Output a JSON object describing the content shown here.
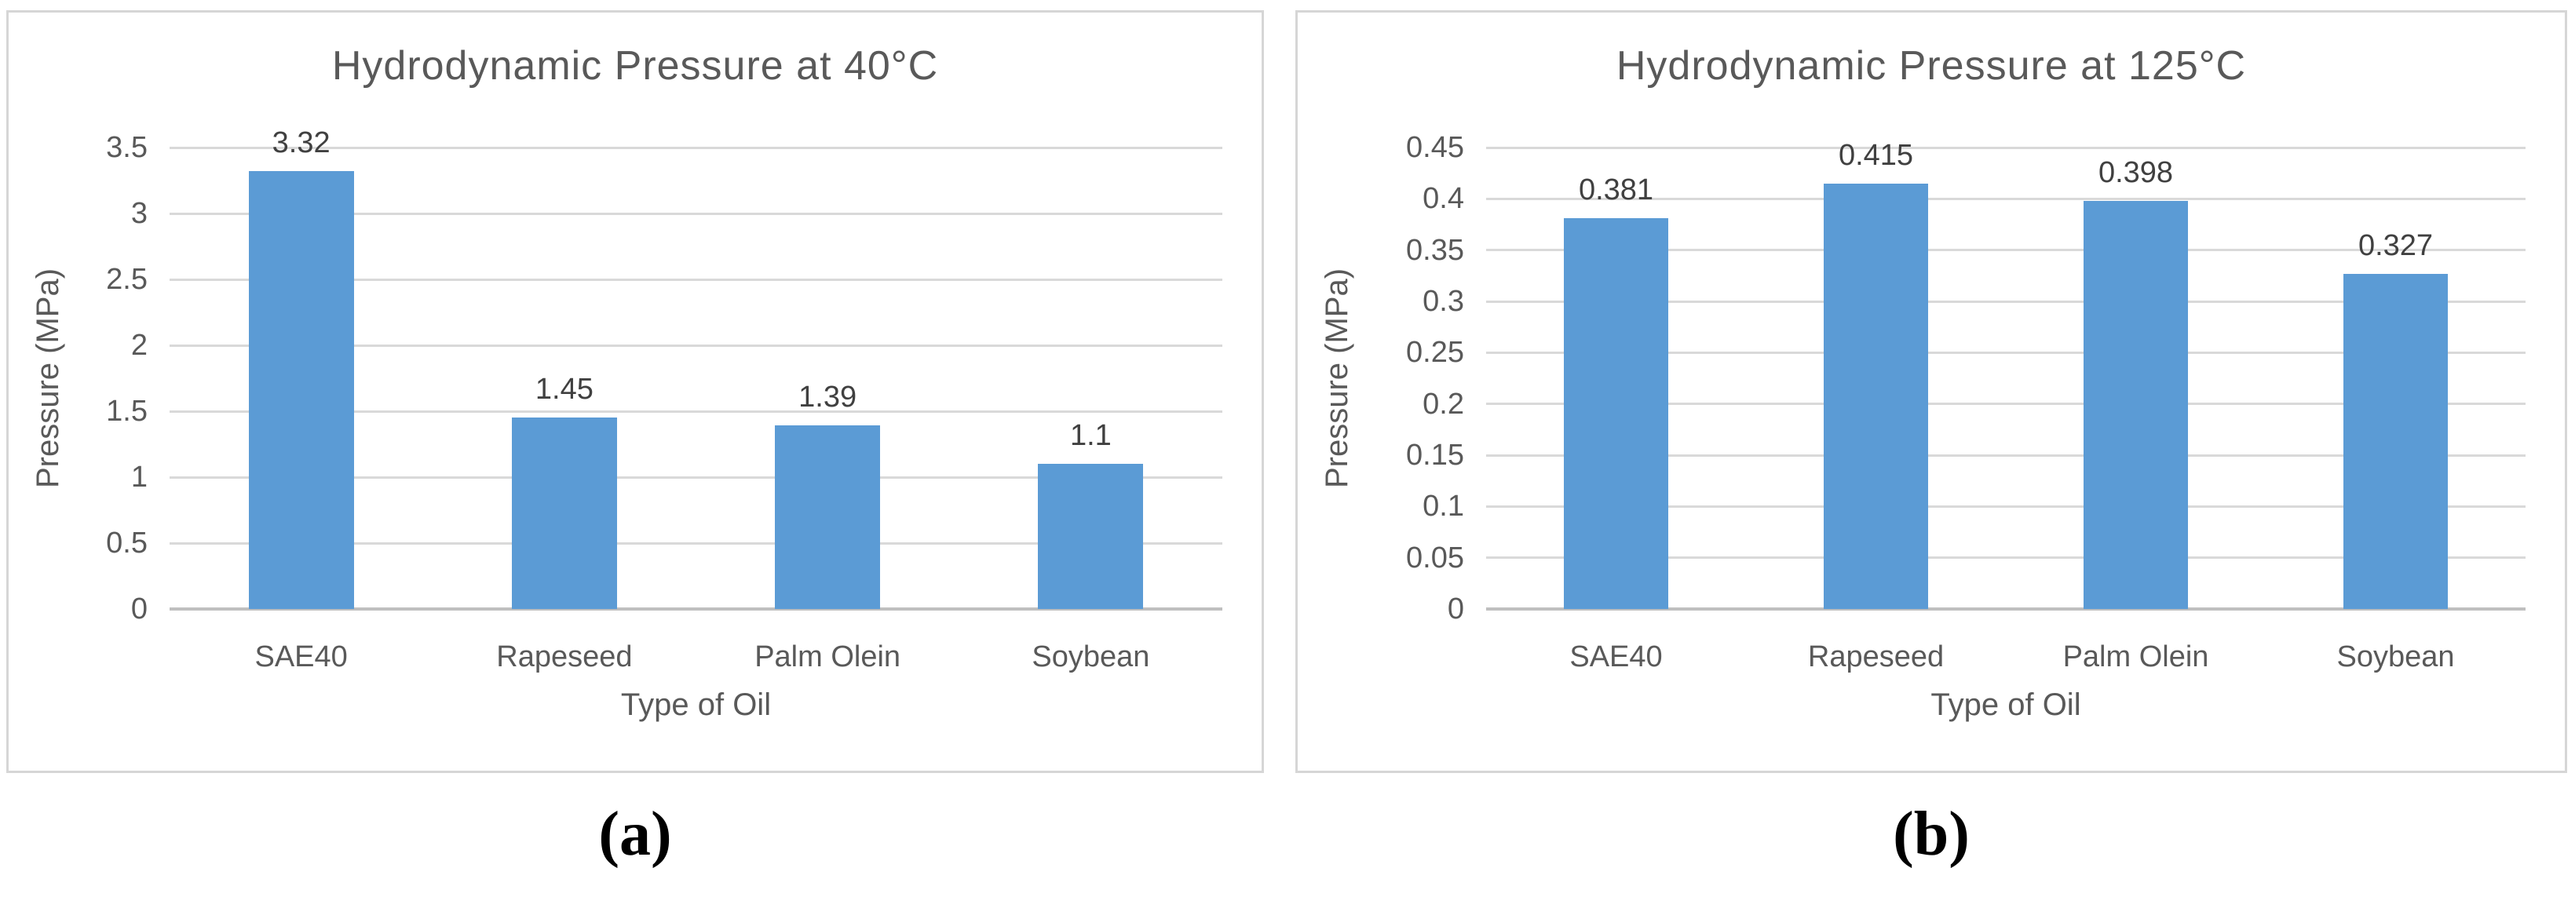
{
  "figure": {
    "captions": {
      "a": "(a)",
      "b": "(b)"
    }
  },
  "colors": {
    "bar": "#5b9bd5",
    "grid": "#d9d9d9",
    "axis": "#bfbfbf",
    "text": "#595959",
    "label": "#404040",
    "border": "#d6d6d6",
    "caption": "#000000",
    "bg": "#ffffff"
  },
  "chart_data": [
    {
      "type": "bar",
      "title": "Hydrodynamic Pressure at 40°C",
      "categories": [
        "SAE40",
        "Rapeseed",
        "Palm Olein",
        "Soybean"
      ],
      "values": [
        3.32,
        1.45,
        1.39,
        1.1
      ],
      "value_labels": [
        "3.32",
        "1.45",
        "1.39",
        "1.1"
      ],
      "xlabel": "Type of Oil",
      "ylabel": "Pressure (MPa)",
      "ylim": [
        0,
        3.5
      ],
      "ytick_step": 0.5,
      "yticks": [
        "3.5",
        "3",
        "2.5",
        "2",
        "1.5",
        "1",
        "0.5",
        "0"
      ],
      "grid": true,
      "legend": "none"
    },
    {
      "type": "bar",
      "title": "Hydrodynamic Pressure at 125°C",
      "categories": [
        "SAE40",
        "Rapeseed",
        "Palm Olein",
        "Soybean"
      ],
      "values": [
        0.381,
        0.415,
        0.398,
        0.327
      ],
      "value_labels": [
        "0.381",
        "0.415",
        "0.398",
        "0.327"
      ],
      "xlabel": "Type of Oil",
      "ylabel": "Pressure (MPa)",
      "ylim": [
        0,
        0.45
      ],
      "ytick_step": 0.05,
      "yticks": [
        "0.45",
        "0.4",
        "0.35",
        "0.3",
        "0.25",
        "0.2",
        "0.15",
        "0.1",
        "0.05",
        "0"
      ],
      "grid": true,
      "legend": "none"
    }
  ]
}
